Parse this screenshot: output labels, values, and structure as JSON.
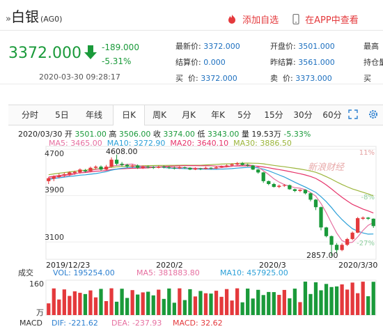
{
  "header": {
    "breadcrumb_glyph": "»",
    "name": "白银",
    "code": "(AG0)",
    "add_favorite": "添加自选",
    "app_view": "在APP中查看"
  },
  "quote": {
    "price": "3372.000",
    "change": "-189.000",
    "change_pct": "-5.31%",
    "time": "2020-03-30 09:28:17",
    "fields": [
      {
        "label": "最新价:",
        "value": "3372.000"
      },
      {
        "label": "开盘价:",
        "value": "3501.000"
      },
      {
        "label": "最高",
        "value": ""
      },
      {
        "label": "结算价:",
        "value": "0.000"
      },
      {
        "label": "昨结算:",
        "value": "3561.000"
      },
      {
        "label": "持仓量",
        "value": ""
      },
      {
        "label": "买  价:",
        "value": "3372.000"
      },
      {
        "label": "卖  价:",
        "value": "3373.000"
      },
      {
        "label": "买",
        "value": ""
      }
    ]
  },
  "tabs": [
    "分时",
    "5日",
    "年线",
    "日K",
    "周K",
    "月K",
    "年K",
    "5分",
    "15分",
    "30分",
    "60分"
  ],
  "active_tab": "日K",
  "chart_info": {
    "date": "2020/03/30",
    "open_label": "开",
    "open": "3501.00",
    "high_label": "高",
    "high": "3506.00",
    "close_label": "收",
    "close": "3374.00",
    "low_label": "低",
    "low": "3343.00",
    "vol_label": "量",
    "vol": "19.53万",
    "pct": "-5.33%",
    "ma5": "MA5: 3465.00",
    "ma10": "MA10: 3272.90",
    "ma20": "MA20: 3640.10",
    "ma30": "MA30: 3886.50"
  },
  "volume_info": {
    "label": "成交",
    "vol": "VOL: 195254.00",
    "ma5": "MA5: 381883.80",
    "ma10": "MA10: 457925.00"
  },
  "macd_info": {
    "label": "MACD",
    "dif": "DIF: -221.62",
    "dea": "DEA: -237.93",
    "macd": "MACD: 32.62"
  },
  "watermark": "新浪财经",
  "colors": {
    "up": "#e4393c",
    "down": "#1a9a3a",
    "accent": "#1c6fbf",
    "ma5": "#e66fa0",
    "ma10": "#2ba0d8",
    "ma20": "#e6336a",
    "ma30": "#9bb53a"
  },
  "chart_data": {
    "type": "candlestick",
    "y_ticks": [
      "4700",
      "3900",
      "3100"
    ],
    "pct_ticks": [
      "11%",
      "-8%",
      "-27%"
    ],
    "x_ticks": [
      "2019/12/23",
      "2020/2",
      "2020/3",
      "2020/3/30"
    ],
    "annotations": [
      "4608.00",
      "2857.00"
    ],
    "ylim": [
      2800,
      4750
    ],
    "volume_ticks": [
      "160",
      "万"
    ],
    "candles": [
      [
        4150,
        4200,
        4100,
        4220
      ],
      [
        4190,
        4230,
        4150,
        4250
      ],
      [
        4220,
        4250,
        4200,
        4280
      ],
      [
        4250,
        4270,
        4220,
        4300
      ],
      [
        4260,
        4300,
        4240,
        4320
      ],
      [
        4290,
        4310,
        4260,
        4330
      ],
      [
        4300,
        4350,
        4280,
        4370
      ],
      [
        4340,
        4320,
        4300,
        4360
      ],
      [
        4320,
        4380,
        4310,
        4400
      ],
      [
        4380,
        4400,
        4350,
        4420
      ],
      [
        4400,
        4350,
        4330,
        4420
      ],
      [
        4350,
        4400,
        4340,
        4430
      ],
      [
        4400,
        4520,
        4380,
        4560
      ],
      [
        4520,
        4450,
        4420,
        4608
      ],
      [
        4450,
        4430,
        4400,
        4480
      ],
      [
        4430,
        4400,
        4380,
        4450
      ],
      [
        4400,
        4420,
        4370,
        4440
      ],
      [
        4420,
        4380,
        4360,
        4440
      ],
      [
        4380,
        4400,
        4360,
        4420
      ],
      [
        4400,
        4390,
        4370,
        4420
      ],
      [
        4390,
        4380,
        4360,
        4410
      ],
      [
        4380,
        4400,
        4370,
        4420
      ],
      [
        4400,
        4390,
        4370,
        4420
      ],
      [
        4390,
        4380,
        4360,
        4410
      ],
      [
        4380,
        4370,
        4350,
        4400
      ],
      [
        4370,
        4390,
        4360,
        4410
      ],
      [
        4390,
        4380,
        4360,
        4400
      ],
      [
        4380,
        4350,
        4340,
        4390
      ],
      [
        4350,
        4370,
        4340,
        4390
      ],
      [
        4370,
        4360,
        4340,
        4380
      ],
      [
        4360,
        4380,
        4350,
        4400
      ],
      [
        4380,
        4370,
        4350,
        4390
      ],
      [
        4370,
        4390,
        4360,
        4410
      ],
      [
        4390,
        4400,
        4380,
        4420
      ],
      [
        4400,
        4420,
        4390,
        4440
      ],
      [
        4420,
        4440,
        4400,
        4460
      ],
      [
        4440,
        4460,
        4420,
        4480
      ],
      [
        4460,
        4430,
        4420,
        4480
      ],
      [
        4430,
        4420,
        4400,
        4450
      ],
      [
        4420,
        4350,
        4340,
        4430
      ],
      [
        4350,
        4300,
        4280,
        4360
      ],
      [
        4300,
        4150,
        4120,
        4310
      ],
      [
        4150,
        4100,
        4080,
        4160
      ],
      [
        4100,
        4050,
        4040,
        4120
      ],
      [
        4050,
        4070,
        4030,
        4090
      ],
      [
        4070,
        4080,
        4050,
        4100
      ],
      [
        4080,
        4010,
        4000,
        4090
      ],
      [
        4010,
        3980,
        3960,
        4020
      ],
      [
        3980,
        4000,
        3960,
        4010
      ],
      [
        4000,
        3940,
        3920,
        4010
      ],
      [
        3940,
        3830,
        3800,
        3950
      ],
      [
        3830,
        3700,
        3650,
        3840
      ],
      [
        3700,
        3350,
        3300,
        3710
      ],
      [
        3350,
        3200,
        3180,
        3360
      ],
      [
        3200,
        3050,
        2857,
        3210
      ],
      [
        3050,
        2960,
        2900,
        3080
      ],
      [
        2960,
        3050,
        2940,
        3080
      ],
      [
        3050,
        3150,
        3030,
        3170
      ],
      [
        3150,
        3260,
        3130,
        3280
      ],
      [
        3260,
        3510,
        3250,
        3530
      ],
      [
        3500,
        3520,
        3480,
        3540
      ],
      [
        3520,
        3500,
        3480,
        3530
      ],
      [
        3501,
        3374,
        3343,
        3506
      ]
    ]
  }
}
